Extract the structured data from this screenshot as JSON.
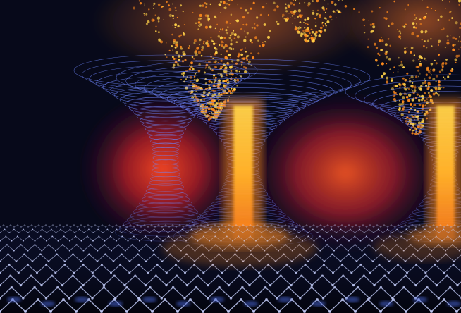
{
  "image": {
    "subject": "quantum-vortex-illustration",
    "palette": {
      "background_dark": "#07091a",
      "background_mid": "#2a0a2e",
      "glow_red": "#e0301e",
      "glow_orange": "#ff8a1c",
      "glow_yellow": "#ffd24a",
      "ring_blue": "#6f86ff",
      "lattice_blue": "#4a66d8",
      "lattice_white": "#c8d2ff"
    },
    "vortices": [
      {
        "name": "left-vortex"
      },
      {
        "name": "center-vortex"
      },
      {
        "name": "right-vortex"
      }
    ]
  }
}
